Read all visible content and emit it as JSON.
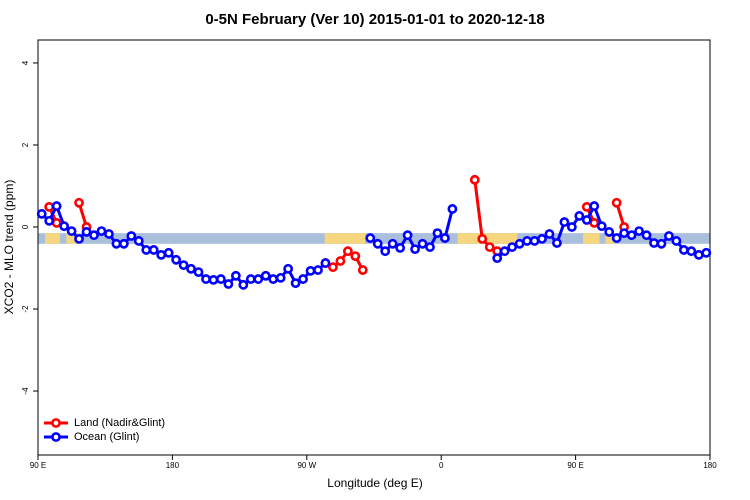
{
  "chart_data": {
    "type": "line",
    "title": "0-5N February (Ver 10)   2015-01-01 to 2020-12-18",
    "x_label": "Longitude (deg E)",
    "y_label": "XCO2 - MLO trend (ppm)",
    "xlim": [
      90,
      540
    ],
    "ylim": [
      -5.56,
      4.56
    ],
    "xticks": [
      {
        "value": 90,
        "label": "90 E"
      },
      180,
      {
        "value": 270,
        "label": "90 W"
      },
      {
        "value": 360,
        "label": "0"
      },
      {
        "value": 450,
        "label": "90 E"
      },
      {
        "value": 540,
        "label": "180"
      }
    ],
    "yticks": [
      4,
      2,
      0,
      -2,
      -4
    ],
    "legend": "bottom-left",
    "background_band": {
      "ylim": [
        -0.15,
        -0.41
      ],
      "color": "#a9bfdc",
      "land_color": "#f7d680",
      "land_ranges": [
        [
          94.7,
          104.7
        ],
        [
          109,
          118
        ],
        [
          282,
          309
        ],
        [
          371,
          411
        ],
        [
          455,
          466
        ],
        [
          470,
          476
        ]
      ]
    },
    "series": [
      {
        "name": "Land (Nadir&Glint)",
        "color": "#ff0000",
        "x": [
          97.5,
          102.5,
          null,
          117.5,
          122.5,
          null,
          282.5,
          287.5,
          292.5,
          297.5,
          302.5,
          307.5,
          null,
          382.5,
          387.5,
          392.5,
          397.5,
          null,
          457.5,
          462.5,
          null,
          477.5,
          482.5
        ],
        "values": [
          0.49,
          0.1,
          null,
          0.59,
          0.0,
          null,
          -0.88,
          -0.98,
          -0.83,
          -0.59,
          -0.71,
          -1.05,
          null,
          1.15,
          -0.29,
          -0.49,
          -0.59,
          null,
          0.49,
          0.1,
          null,
          0.59,
          0.0
        ]
      },
      {
        "name": "Ocean (Glint)",
        "color": "#0000ff",
        "x": [
          92.5,
          97.5,
          102.5,
          107.5,
          112.5,
          117.5,
          122.5,
          127.5,
          132.5,
          137.5,
          142.5,
          147.5,
          152.5,
          157.5,
          162.5,
          167.5,
          172.5,
          177.5,
          182.5,
          187.5,
          192.5,
          197.5,
          202.5,
          207.5,
          212.5,
          217.5,
          222.5,
          227.5,
          232.5,
          237.5,
          242.5,
          247.5,
          252.5,
          257.5,
          262.5,
          267.5,
          272.5,
          277.5,
          282.5,
          null,
          312.5,
          317.5,
          322.5,
          327.5,
          332.5,
          337.5,
          342.5,
          347.5,
          352.5,
          357.5,
          362.5,
          367.5,
          null,
          397.5,
          402.5,
          407.5,
          412.5,
          417.5,
          422.5,
          427.5,
          432.5,
          437.5,
          442.5,
          447.5,
          452.5,
          457.5,
          462.5,
          467.5,
          472.5,
          477.5,
          482.5,
          487.5,
          492.5,
          497.5,
          502.5,
          507.5,
          512.5,
          517.5,
          522.5,
          527.5,
          532.5,
          537.5
        ],
        "values": [
          0.32,
          0.15,
          0.51,
          0.02,
          -0.1,
          -0.29,
          -0.12,
          -0.2,
          -0.1,
          -0.17,
          -0.41,
          -0.41,
          -0.22,
          -0.34,
          -0.56,
          -0.56,
          -0.68,
          -0.63,
          -0.8,
          -0.93,
          -1.02,
          -1.1,
          -1.27,
          -1.29,
          -1.27,
          -1.39,
          -1.19,
          -1.41,
          -1.27,
          -1.27,
          -1.19,
          -1.27,
          -1.24,
          -1.02,
          -1.37,
          -1.27,
          -1.07,
          -1.05,
          -0.88,
          null,
          -0.27,
          -0.41,
          -0.59,
          -0.41,
          -0.51,
          -0.2,
          -0.54,
          -0.41,
          -0.49,
          -0.15,
          -0.27,
          0.44,
          null,
          -0.76,
          -0.59,
          -0.49,
          -0.41,
          -0.34,
          -0.34,
          -0.29,
          -0.17,
          -0.39,
          0.12,
          0.0,
          0.27,
          0.17,
          0.51,
          0.02,
          -0.12,
          -0.27,
          -0.15,
          -0.2,
          -0.1,
          -0.2,
          -0.39,
          -0.41,
          -0.22,
          -0.34,
          -0.56,
          -0.59,
          -0.68,
          -0.63
        ]
      }
    ]
  }
}
